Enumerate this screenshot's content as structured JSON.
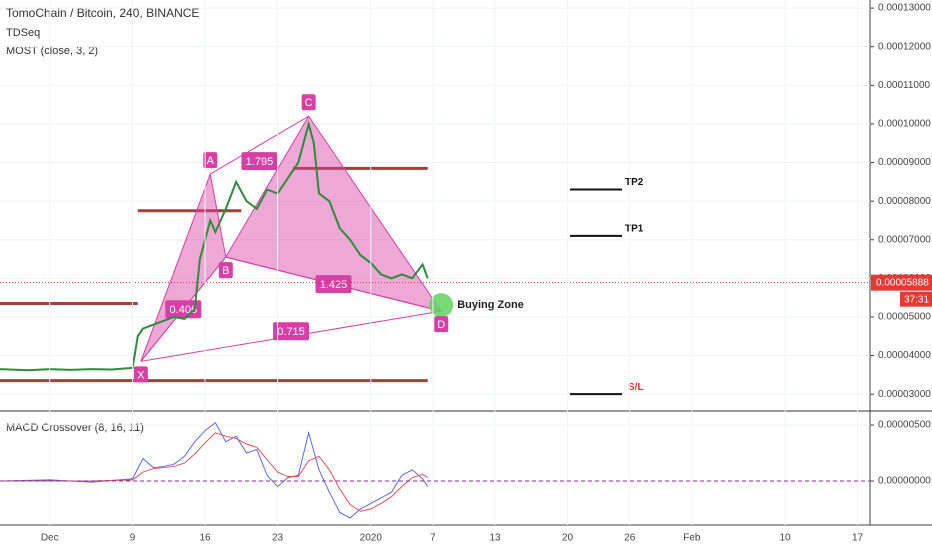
{
  "chart_data": [
    {
      "type": "line",
      "title": "TomoChain / Bitcoin, 240, BINANCE",
      "subtitles": [
        "TDSeq",
        "MOST (close, 3, 2)"
      ],
      "x": [
        -4.8,
        -2,
        0,
        2,
        4,
        6,
        8,
        8.5,
        9,
        10,
        11,
        12,
        13,
        14,
        14.5,
        15,
        15.5,
        16,
        17,
        18,
        19,
        20,
        21,
        22,
        23,
        24,
        25,
        25.5,
        26,
        27,
        28,
        29,
        30,
        31,
        32,
        33,
        34,
        35,
        36,
        36.5
      ],
      "values": [
        3.65e-05,
        3.62e-05,
        3.65e-05,
        3.63e-05,
        3.65e-05,
        3.64e-05,
        3.68e-05,
        4.5e-05,
        4.7e-05,
        4.8e-05,
        4.9e-05,
        5e-05,
        4.95e-05,
        5.2e-05,
        6.5e-05,
        7e-05,
        7.5e-05,
        7.2e-05,
        7.8e-05,
        8.5e-05,
        8e-05,
        7.8e-05,
        8.3e-05,
        8.2e-05,
        8.6e-05,
        9e-05,
        0.0001,
        9.5e-05,
        8.2e-05,
        8e-05,
        7.3e-05,
        7e-05,
        6.6e-05,
        6.4e-05,
        6.1e-05,
        6e-05,
        6.1e-05,
        6e-05,
        6.36e-05,
        6e-05
      ],
      "color": "#2e8b3a",
      "xlim": [
        -4.8,
        79.2
      ],
      "ylim": [
        2.59e-05,
        0.0001321
      ],
      "yticks": [
        {
          "value": 3e-05,
          "label": "0.00003000"
        },
        {
          "value": 4e-05,
          "label": "0.00004000"
        },
        {
          "value": 5e-05,
          "label": "0.00005000"
        },
        {
          "value": 6e-05,
          "label": "0.00006000"
        },
        {
          "value": 7e-05,
          "label": "0.00007000"
        },
        {
          "value": 8e-05,
          "label": "0.00008000"
        },
        {
          "value": 9e-05,
          "label": "0.00009000"
        },
        {
          "value": 0.0001,
          "label": "0.00010000"
        },
        {
          "value": 0.00011,
          "label": "0.00011000"
        },
        {
          "value": 0.00012,
          "label": "0.00012000"
        },
        {
          "value": 0.00013,
          "label": "0.00013000"
        }
      ],
      "grid": true,
      "pattern": {
        "color": "#d63fa5",
        "points": [
          {
            "label": "X",
            "x": 8.8,
            "y": 3.85e-05
          },
          {
            "label": "A",
            "x": 15.5,
            "y": 8.7e-05
          },
          {
            "label": "B",
            "x": 17,
            "y": 6.55e-05
          },
          {
            "label": "C",
            "x": 25,
            "y": 0.000102
          },
          {
            "label": "D",
            "x": 37.8,
            "y": 5.15e-05
          }
        ],
        "ratios": [
          "1.795",
          "0.406",
          "1.425",
          "0.715"
        ]
      },
      "levels": [
        {
          "value": 5.35e-05,
          "from": -4.8,
          "to": 8.5
        },
        {
          "value": 3.35e-05,
          "from": -4.8,
          "to": 36.5
        },
        {
          "value": 7.75e-05,
          "from": 8.5,
          "to": 18.5
        },
        {
          "value": 8.85e-05,
          "from": 23.5,
          "to": 36.5
        }
      ],
      "targets": [
        {
          "label": "TP2",
          "value": 8.3e-05
        },
        {
          "label": "TP1",
          "value": 7.1e-05
        },
        {
          "label": "S/L",
          "value": 3e-05
        }
      ],
      "zone_label": "Buying Zone",
      "last_price": {
        "value": 5.888e-05,
        "label": "0.00005888"
      },
      "countdown": "37:31"
    },
    {
      "type": "line",
      "title": "MACD Crossover (8, 16, 11)",
      "x": [
        -4.8,
        0,
        4,
        8,
        9,
        10,
        11,
        12,
        13,
        14,
        15,
        16,
        17,
        18,
        19,
        20,
        21,
        22,
        23,
        24,
        25,
        26,
        27,
        28,
        29,
        30,
        31,
        32,
        33,
        34,
        35,
        36,
        36.5
      ],
      "series": [
        {
          "name": "MACD",
          "color": "#5a6be0",
          "values": [
            0,
            1e-07,
            -1e-07,
            2e-07,
            2e-06,
            1.2e-06,
            1.3e-06,
            1.5e-06,
            2.2e-06,
            3.5e-06,
            4.5e-06,
            5.2e-06,
            3.5e-06,
            4e-06,
            2.5e-06,
            2.8e-06,
            5e-07,
            -5e-07,
            3e-07,
            5e-07,
            4.3e-06,
            1e-06,
            -1e-06,
            -2.8e-06,
            -3.3e-06,
            -2.5e-06,
            -2e-06,
            -1.5e-06,
            -1e-06,
            5e-07,
            1e-06,
            2e-07,
            -5e-07
          ]
        },
        {
          "name": "Signal",
          "color": "#e0505a",
          "values": [
            0,
            0,
            0,
            1e-07,
            8e-07,
            1.1e-06,
            1.2e-06,
            1.3e-06,
            1.6e-06,
            2.4e-06,
            3.4e-06,
            4.3e-06,
            4e-06,
            3.8e-06,
            3.3e-06,
            3e-06,
            1.9e-06,
            8e-07,
            4e-07,
            4e-07,
            1.8e-06,
            2.2e-06,
            1e-06,
            -7e-07,
            -2.1e-06,
            -2.7e-06,
            -2.5e-06,
            -2e-06,
            -1.4e-06,
            -5e-07,
            3e-07,
            6e-07,
            3e-07
          ]
        }
      ],
      "xlim": [
        -4.8,
        79.2
      ],
      "ylim": [
        -3.66e-06,
        6.16e-06
      ],
      "yticks": [
        {
          "value": 0,
          "label": "0.00000000"
        },
        {
          "value": 5e-06,
          "label": "0.00000500"
        }
      ],
      "xticks": [
        {
          "value": 0,
          "label": "Dec"
        },
        {
          "value": 8,
          "label": "9"
        },
        {
          "value": 15,
          "label": "16"
        },
        {
          "value": 22,
          "label": "23"
        },
        {
          "value": 31,
          "label": "2020"
        },
        {
          "value": 37,
          "label": "7"
        },
        {
          "value": 43,
          "label": "13"
        },
        {
          "value": 50,
          "label": "20"
        },
        {
          "value": 56,
          "label": "26"
        },
        {
          "value": 62,
          "label": "Feb"
        },
        {
          "value": 71,
          "label": "10"
        },
        {
          "value": 78,
          "label": "17"
        }
      ]
    }
  ]
}
